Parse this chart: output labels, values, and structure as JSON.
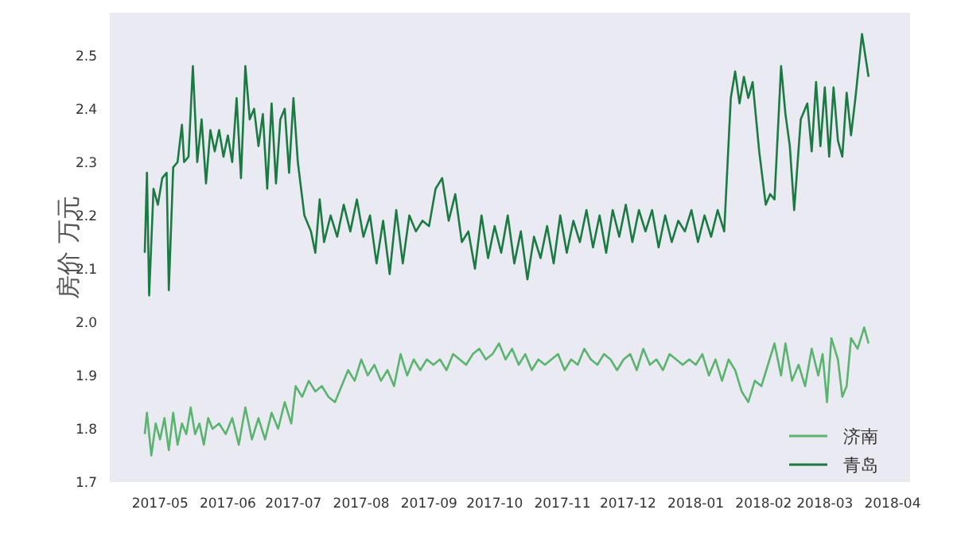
{
  "chart_data": {
    "type": "line",
    "ylabel": "房价 万元",
    "legend": "bottom right",
    "xlim": [
      "2017-04-08",
      "2018-04-09"
    ],
    "ylim": [
      1.7,
      2.58
    ],
    "xticks": [
      {
        "value": "2017-05-01",
        "label": "2017-05"
      },
      {
        "value": "2017-06-01",
        "label": "2017-06"
      },
      {
        "value": "2017-07-01",
        "label": "2017-07"
      },
      {
        "value": "2017-08-01",
        "label": "2017-08"
      },
      {
        "value": "2017-09-01",
        "label": "2017-09"
      },
      {
        "value": "2017-10-01",
        "label": "2017-10"
      },
      {
        "value": "2017-11-01",
        "label": "2017-11"
      },
      {
        "value": "2017-12-01",
        "label": "2017-12"
      },
      {
        "value": "2018-01-01",
        "label": "2018-01"
      },
      {
        "value": "2018-02-01",
        "label": "2018-02"
      },
      {
        "value": "2018-03-01",
        "label": "2018-03"
      },
      {
        "value": "2018-04-01",
        "label": "2018-04"
      }
    ],
    "yticks": [
      1.7,
      1.8,
      1.9,
      {
        "value": 2,
        "label": "2.0"
      },
      2.1,
      2.2,
      2.3,
      2.4,
      2.5
    ],
    "series": [
      {
        "name": "济南",
        "color": "#5ab36e",
        "x": [
          "2017-04-24",
          "2017-04-25",
          "2017-04-27",
          "2017-04-29",
          "2017-05-01",
          "2017-05-03",
          "2017-05-05",
          "2017-05-07",
          "2017-05-09",
          "2017-05-11",
          "2017-05-13",
          "2017-05-15",
          "2017-05-17",
          "2017-05-19",
          "2017-05-21",
          "2017-05-23",
          "2017-05-25",
          "2017-05-28",
          "2017-05-31",
          "2017-06-03",
          "2017-06-06",
          "2017-06-09",
          "2017-06-12",
          "2017-06-15",
          "2017-06-18",
          "2017-06-21",
          "2017-06-24",
          "2017-06-27",
          "2017-06-30",
          "2017-07-02",
          "2017-07-05",
          "2017-07-08",
          "2017-07-11",
          "2017-07-14",
          "2017-07-17",
          "2017-07-20",
          "2017-07-23",
          "2017-07-26",
          "2017-07-29",
          "2017-08-01",
          "2017-08-04",
          "2017-08-07",
          "2017-08-10",
          "2017-08-13",
          "2017-08-16",
          "2017-08-19",
          "2017-08-22",
          "2017-08-25",
          "2017-08-28",
          "2017-08-31",
          "2017-09-03",
          "2017-09-06",
          "2017-09-09",
          "2017-09-12",
          "2017-09-15",
          "2017-09-18",
          "2017-09-21",
          "2017-09-24",
          "2017-09-27",
          "2017-09-30",
          "2017-10-03",
          "2017-10-06",
          "2017-10-09",
          "2017-10-12",
          "2017-10-15",
          "2017-10-18",
          "2017-10-21",
          "2017-10-24",
          "2017-10-27",
          "2017-10-30",
          "2017-11-02",
          "2017-11-05",
          "2017-11-08",
          "2017-11-11",
          "2017-11-14",
          "2017-11-17",
          "2017-11-20",
          "2017-11-23",
          "2017-11-26",
          "2017-11-29",
          "2017-12-02",
          "2017-12-05",
          "2017-12-08",
          "2017-12-11",
          "2017-12-14",
          "2017-12-17",
          "2017-12-20",
          "2017-12-23",
          "2017-12-26",
          "2017-12-29",
          "2018-01-01",
          "2018-01-04",
          "2018-01-07",
          "2018-01-10",
          "2018-01-13",
          "2018-01-16",
          "2018-01-19",
          "2018-01-22",
          "2018-01-25",
          "2018-01-28",
          "2018-01-31",
          "2018-02-03",
          "2018-02-06",
          "2018-02-09",
          "2018-02-11",
          "2018-02-14",
          "2018-02-17",
          "2018-02-20",
          "2018-02-23",
          "2018-02-26",
          "2018-02-28",
          "2018-03-02",
          "2018-03-04",
          "2018-03-07",
          "2018-03-09",
          "2018-03-11",
          "2018-03-13",
          "2018-03-16",
          "2018-03-19",
          "2018-03-21"
        ],
        "values": [
          1.79,
          1.83,
          1.75,
          1.81,
          1.78,
          1.82,
          1.76,
          1.83,
          1.77,
          1.81,
          1.79,
          1.84,
          1.79,
          1.81,
          1.77,
          1.82,
          1.8,
          1.81,
          1.79,
          1.82,
          1.77,
          1.84,
          1.78,
          1.82,
          1.78,
          1.83,
          1.8,
          1.85,
          1.81,
          1.88,
          1.86,
          1.89,
          1.87,
          1.88,
          1.86,
          1.85,
          1.88,
          1.91,
          1.89,
          1.93,
          1.9,
          1.92,
          1.89,
          1.91,
          1.88,
          1.94,
          1.9,
          1.93,
          1.91,
          1.93,
          1.92,
          1.93,
          1.91,
          1.94,
          1.93,
          1.92,
          1.94,
          1.95,
          1.93,
          1.94,
          1.96,
          1.93,
          1.95,
          1.92,
          1.94,
          1.91,
          1.93,
          1.92,
          1.93,
          1.94,
          1.91,
          1.93,
          1.92,
          1.95,
          1.93,
          1.92,
          1.94,
          1.93,
          1.91,
          1.93,
          1.94,
          1.91,
          1.95,
          1.92,
          1.93,
          1.91,
          1.94,
          1.93,
          1.92,
          1.93,
          1.92,
          1.94,
          1.9,
          1.93,
          1.89,
          1.93,
          1.91,
          1.87,
          1.85,
          1.89,
          1.88,
          1.92,
          1.96,
          1.9,
          1.96,
          1.89,
          1.92,
          1.88,
          1.95,
          1.9,
          1.94,
          1.85,
          1.97,
          1.93,
          1.86,
          1.88,
          1.97,
          1.95,
          1.99,
          1.96
        ]
      },
      {
        "name": "青岛",
        "color": "#1a7a42",
        "x": [
          "2017-04-24",
          "2017-04-25",
          "2017-04-26",
          "2017-04-28",
          "2017-04-30",
          "2017-05-02",
          "2017-05-04",
          "2017-05-05",
          "2017-05-07",
          "2017-05-09",
          "2017-05-11",
          "2017-05-12",
          "2017-05-14",
          "2017-05-16",
          "2017-05-18",
          "2017-05-20",
          "2017-05-22",
          "2017-05-24",
          "2017-05-26",
          "2017-05-28",
          "2017-05-30",
          "2017-06-01",
          "2017-06-03",
          "2017-06-05",
          "2017-06-07",
          "2017-06-09",
          "2017-06-11",
          "2017-06-13",
          "2017-06-15",
          "2017-06-17",
          "2017-06-19",
          "2017-06-21",
          "2017-06-23",
          "2017-06-25",
          "2017-06-27",
          "2017-06-29",
          "2017-07-01",
          "2017-07-03",
          "2017-07-06",
          "2017-07-09",
          "2017-07-11",
          "2017-07-13",
          "2017-07-15",
          "2017-07-18",
          "2017-07-21",
          "2017-07-24",
          "2017-07-27",
          "2017-07-30",
          "2017-08-02",
          "2017-08-05",
          "2017-08-08",
          "2017-08-11",
          "2017-08-14",
          "2017-08-17",
          "2017-08-20",
          "2017-08-23",
          "2017-08-26",
          "2017-08-29",
          "2017-09-01",
          "2017-09-04",
          "2017-09-07",
          "2017-09-10",
          "2017-09-13",
          "2017-09-16",
          "2017-09-19",
          "2017-09-22",
          "2017-09-25",
          "2017-09-28",
          "2017-10-01",
          "2017-10-04",
          "2017-10-07",
          "2017-10-10",
          "2017-10-13",
          "2017-10-16",
          "2017-10-19",
          "2017-10-22",
          "2017-10-25",
          "2017-10-28",
          "2017-10-31",
          "2017-11-03",
          "2017-11-06",
          "2017-11-09",
          "2017-11-12",
          "2017-11-15",
          "2017-11-18",
          "2017-11-21",
          "2017-11-24",
          "2017-11-27",
          "2017-11-30",
          "2017-12-03",
          "2017-12-06",
          "2017-12-09",
          "2017-12-12",
          "2017-12-15",
          "2017-12-18",
          "2017-12-21",
          "2017-12-24",
          "2017-12-27",
          "2017-12-30",
          "2018-01-02",
          "2018-01-05",
          "2018-01-08",
          "2018-01-11",
          "2018-01-14",
          "2018-01-17",
          "2018-01-19",
          "2018-01-21",
          "2018-01-23",
          "2018-01-25",
          "2018-01-27",
          "2018-01-30",
          "2018-02-02",
          "2018-02-04",
          "2018-02-06",
          "2018-02-09",
          "2018-02-11",
          "2018-02-13",
          "2018-02-15",
          "2018-02-18",
          "2018-02-21",
          "2018-02-23",
          "2018-02-25",
          "2018-02-27",
          "2018-03-01",
          "2018-03-03",
          "2018-03-05",
          "2018-03-07",
          "2018-03-09",
          "2018-03-11",
          "2018-03-13",
          "2018-03-15",
          "2018-03-18",
          "2018-03-21"
        ],
        "values": [
          2.13,
          2.28,
          2.05,
          2.25,
          2.22,
          2.27,
          2.28,
          2.06,
          2.29,
          2.3,
          2.37,
          2.3,
          2.31,
          2.48,
          2.3,
          2.38,
          2.26,
          2.36,
          2.32,
          2.36,
          2.31,
          2.35,
          2.3,
          2.42,
          2.27,
          2.48,
          2.38,
          2.4,
          2.33,
          2.39,
          2.25,
          2.41,
          2.26,
          2.38,
          2.4,
          2.28,
          2.42,
          2.3,
          2.2,
          2.17,
          2.13,
          2.23,
          2.15,
          2.2,
          2.16,
          2.22,
          2.17,
          2.23,
          2.16,
          2.2,
          2.11,
          2.19,
          2.09,
          2.21,
          2.11,
          2.2,
          2.17,
          2.19,
          2.18,
          2.25,
          2.27,
          2.19,
          2.24,
          2.15,
          2.17,
          2.1,
          2.2,
          2.12,
          2.18,
          2.13,
          2.2,
          2.11,
          2.17,
          2.08,
          2.16,
          2.12,
          2.18,
          2.11,
          2.2,
          2.13,
          2.19,
          2.15,
          2.21,
          2.14,
          2.2,
          2.13,
          2.21,
          2.16,
          2.22,
          2.15,
          2.21,
          2.17,
          2.21,
          2.14,
          2.2,
          2.15,
          2.19,
          2.17,
          2.21,
          2.15,
          2.2,
          2.16,
          2.21,
          2.17,
          2.42,
          2.47,
          2.41,
          2.46,
          2.42,
          2.45,
          2.32,
          2.22,
          2.24,
          2.23,
          2.48,
          2.39,
          2.33,
          2.21,
          2.38,
          2.41,
          2.32,
          2.45,
          2.33,
          2.44,
          2.31,
          2.44,
          2.34,
          2.31,
          2.43,
          2.35,
          2.42,
          2.54,
          2.46
        ]
      }
    ]
  }
}
